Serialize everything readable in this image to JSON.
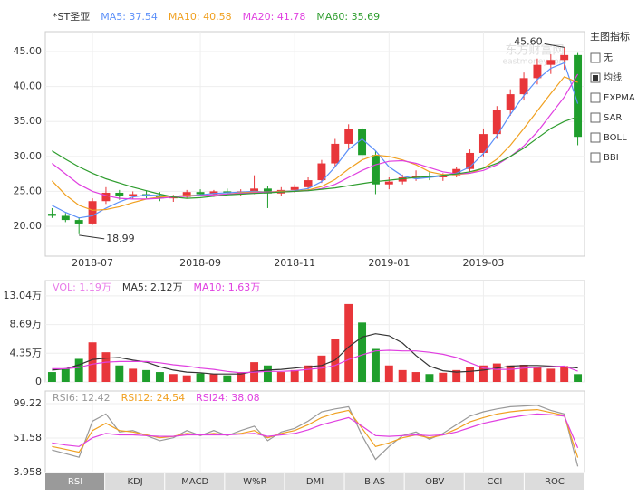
{
  "chart_data": [
    {
      "type": "candlestick",
      "title": "*ST圣亚",
      "categories": [
        null,
        null,
        null,
        "2018-07",
        null,
        null,
        null,
        null,
        null,
        null,
        null,
        "2018-09",
        null,
        null,
        null,
        null,
        null,
        null,
        "2018-11",
        null,
        null,
        null,
        null,
        null,
        null,
        "2019-01",
        null,
        null,
        null,
        null,
        null,
        null,
        "2019-03",
        null,
        null,
        null,
        null,
        null,
        null,
        null
      ],
      "open": [
        21.8,
        21.5,
        20.9,
        20.4,
        23.6,
        24.8,
        24.3,
        24.6,
        24.4,
        24.0,
        24.2,
        24.9,
        24.6,
        25.0,
        24.8,
        25.0,
        25.4,
        24.7,
        25.2,
        25.6,
        26.6,
        29.0,
        31.8,
        33.9,
        30.2,
        26.0,
        26.4,
        27.0,
        27.2,
        27.0,
        27.3,
        28.2,
        30.5,
        33.2,
        36.6,
        38.9,
        41.2,
        43.1,
        43.8,
        44.5
      ],
      "high": [
        22.6,
        21.9,
        21.3,
        24.0,
        25.6,
        25.2,
        25.0,
        25.1,
        24.9,
        24.5,
        25.2,
        25.3,
        25.2,
        25.4,
        25.3,
        27.3,
        25.8,
        25.6,
        26.0,
        27.0,
        29.5,
        32.5,
        34.6,
        34.2,
        30.8,
        27.0,
        27.4,
        28.0,
        27.8,
        27.6,
        28.5,
        31.0,
        34.0,
        37.2,
        39.6,
        42.0,
        44.0,
        44.6,
        45.6,
        44.8
      ],
      "low": [
        21.2,
        20.6,
        18.99,
        20.2,
        23.2,
        23.8,
        23.9,
        24.0,
        23.6,
        23.5,
        24.0,
        24.3,
        24.2,
        24.5,
        24.3,
        24.6,
        22.6,
        24.4,
        24.8,
        25.2,
        26.2,
        28.5,
        31.0,
        29.5,
        24.6,
        25.3,
        26.0,
        26.5,
        26.6,
        26.5,
        27.0,
        27.8,
        30.0,
        32.5,
        35.8,
        38.0,
        40.3,
        41.8,
        42.4,
        31.6
      ],
      "close": [
        21.5,
        20.9,
        20.4,
        23.6,
        24.8,
        24.3,
        24.6,
        24.4,
        24.0,
        24.2,
        24.9,
        24.6,
        25.0,
        24.8,
        25.0,
        25.4,
        24.7,
        25.2,
        25.6,
        26.6,
        29.0,
        31.8,
        33.9,
        30.2,
        26.0,
        26.4,
        27.0,
        27.2,
        27.0,
        27.3,
        28.2,
        30.5,
        33.2,
        36.6,
        38.9,
        41.2,
        43.1,
        43.8,
        44.5,
        32.8
      ],
      "up_color": "#e8363a",
      "down_color": "#1f9e2c",
      "series": [
        {
          "name": "MA5: 37.54",
          "color": "#5b8ff9",
          "values": [
            23.0,
            22.0,
            21.2,
            21.5,
            22.6,
            23.5,
            24.2,
            24.5,
            24.4,
            24.3,
            24.4,
            24.5,
            24.7,
            24.8,
            24.9,
            25.0,
            24.9,
            25.0,
            25.1,
            25.4,
            26.4,
            28.5,
            31.0,
            32.5,
            30.8,
            28.5,
            27.2,
            26.8,
            27.0,
            27.2,
            27.6,
            28.5,
            30.4,
            33.0,
            36.0,
            38.7,
            41.0,
            42.6,
            43.4,
            37.54
          ]
        },
        {
          "name": "MA10: 40.58",
          "color": "#f0a020",
          "values": [
            26.5,
            24.5,
            23.0,
            22.3,
            22.4,
            22.8,
            23.4,
            23.9,
            24.2,
            24.3,
            24.4,
            24.4,
            24.5,
            24.6,
            24.8,
            24.9,
            24.9,
            25.0,
            25.0,
            25.2,
            25.7,
            26.7,
            28.2,
            29.5,
            30.2,
            30.0,
            29.5,
            28.8,
            27.8,
            27.4,
            27.4,
            27.6,
            28.3,
            29.6,
            31.6,
            34.0,
            36.5,
            39.0,
            41.4,
            40.58
          ]
        },
        {
          "name": "MA20: 41.78",
          "color": "#e040e0",
          "values": [
            29.0,
            27.5,
            26.0,
            25.0,
            24.4,
            24.0,
            23.9,
            23.9,
            24.0,
            24.2,
            24.3,
            24.4,
            24.5,
            24.6,
            24.7,
            24.8,
            24.9,
            24.9,
            25.0,
            25.1,
            25.4,
            26.0,
            27.0,
            28.0,
            28.8,
            29.3,
            29.4,
            29.0,
            28.4,
            27.8,
            27.5,
            27.6,
            28.0,
            28.8,
            30.0,
            31.5,
            33.5,
            36.0,
            38.5,
            41.78
          ]
        },
        {
          "name": "MA60: 35.69",
          "color": "#2e9d2e",
          "values": [
            30.8,
            29.6,
            28.5,
            27.6,
            26.8,
            26.2,
            25.6,
            25.1,
            24.6,
            24.2,
            24.0,
            24.1,
            24.3,
            24.5,
            24.6,
            24.7,
            24.8,
            24.9,
            25.0,
            25.1,
            25.3,
            25.5,
            25.8,
            26.1,
            26.4,
            26.6,
            26.8,
            27.0,
            27.1,
            27.3,
            27.5,
            27.8,
            28.3,
            29.0,
            30.0,
            31.2,
            32.6,
            34.0,
            35.0,
            35.69
          ]
        }
      ],
      "annotations": [
        {
          "label": "45.60",
          "value": 45.6
        },
        {
          "label": "18.99",
          "value": 18.99
        }
      ],
      "ylim": [
        15.73,
        47.85
      ],
      "yticks": [
        {
          "value": 20,
          "label": "20.00"
        },
        {
          "value": 25,
          "label": "25.00"
        },
        {
          "value": 30,
          "label": "30.00"
        },
        {
          "value": 35,
          "label": "35.00"
        },
        {
          "value": 40,
          "label": "40.00"
        },
        {
          "value": 45,
          "label": "45.00"
        }
      ],
      "grid": true
    },
    {
      "type": "bar",
      "series": [
        {
          "name": "VOL: 1.19万",
          "type": "bar",
          "color": "#e879e8",
          "values": [
            1.5,
            2.0,
            3.5,
            6.0,
            4.5,
            2.5,
            2.0,
            1.8,
            1.5,
            1.2,
            1.0,
            1.3,
            1.2,
            1.0,
            1.5,
            3.0,
            2.5,
            1.5,
            1.8,
            2.5,
            4.0,
            6.5,
            11.8,
            9.0,
            5.0,
            2.5,
            1.8,
            1.5,
            1.2,
            1.4,
            1.8,
            2.2,
            2.5,
            2.8,
            2.5,
            2.6,
            2.2,
            2.0,
            2.4,
            1.19
          ]
        },
        {
          "name": "MA5: 2.12万",
          "type": "line",
          "color": "#333333",
          "values": [
            1.8,
            2.0,
            2.6,
            3.4,
            3.6,
            3.7,
            3.3,
            3.0,
            2.3,
            1.8,
            1.5,
            1.4,
            1.2,
            1.2,
            1.2,
            1.6,
            1.8,
            1.9,
            2.1,
            2.3,
            2.5,
            3.3,
            5.3,
            6.8,
            7.3,
            7.0,
            5.9,
            4.0,
            2.4,
            1.7,
            1.5,
            1.6,
            1.8,
            2.1,
            2.4,
            2.5,
            2.5,
            2.4,
            2.3,
            2.12
          ]
        },
        {
          "name": "MA10: 1.63万",
          "type": "line",
          "color": "#e040e0",
          "values": [
            2.0,
            2.0,
            2.2,
            2.7,
            3.0,
            3.1,
            3.1,
            3.1,
            2.9,
            2.6,
            2.4,
            2.1,
            1.9,
            1.6,
            1.4,
            1.5,
            1.6,
            1.6,
            1.7,
            1.9,
            2.1,
            2.5,
            3.4,
            4.1,
            4.7,
            4.8,
            4.7,
            4.7,
            4.5,
            4.2,
            3.7,
            2.9,
            2.1,
            1.9,
            1.9,
            2.1,
            2.2,
            2.3,
            2.4,
            1.63
          ]
        }
      ],
      "ylim": [
        0,
        15.35
      ],
      "yticks": [
        0,
        {
          "value": 4.35,
          "label": "4.35万"
        },
        {
          "value": 8.69,
          "label": "8.69万"
        },
        {
          "value": 13.04,
          "label": "13.04万"
        }
      ],
      "grid": true
    },
    {
      "type": "line",
      "series": [
        {
          "name": "RSI6: 12.42",
          "color": "#999999",
          "values": [
            35,
            30,
            25,
            75,
            85,
            60,
            62,
            55,
            48,
            52,
            62,
            55,
            62,
            55,
            62,
            68,
            48,
            60,
            65,
            75,
            88,
            92,
            95,
            55,
            22,
            40,
            55,
            60,
            50,
            58,
            70,
            82,
            88,
            92,
            95,
            96,
            97,
            90,
            85,
            12.42
          ]
        },
        {
          "name": "RSI12: 24.54",
          "color": "#f0a020",
          "values": [
            40,
            36,
            32,
            62,
            72,
            62,
            60,
            56,
            52,
            54,
            58,
            56,
            58,
            56,
            58,
            62,
            52,
            58,
            62,
            70,
            80,
            86,
            90,
            65,
            40,
            45,
            52,
            56,
            52,
            56,
            64,
            74,
            80,
            85,
            88,
            90,
            91,
            87,
            83,
            24.54
          ]
        },
        {
          "name": "RSI24: 38.08",
          "color": "#e040e0",
          "values": [
            45,
            42,
            40,
            52,
            58,
            56,
            56,
            55,
            54,
            54,
            56,
            56,
            56,
            56,
            57,
            58,
            54,
            56,
            58,
            63,
            70,
            75,
            80,
            68,
            55,
            54,
            55,
            56,
            55,
            56,
            60,
            66,
            72,
            76,
            80,
            83,
            85,
            84,
            82,
            38.08
          ]
        }
      ],
      "ylim": [
        3.958,
        116.8
      ],
      "yticks": [
        3.958,
        51.58,
        99.22
      ],
      "grid": true
    }
  ],
  "watermark": [
    "东方财富网",
    "eastmoney.com"
  ],
  "indicator_menu": {
    "title": "主图指标",
    "options": [
      "无",
      "均线",
      "EXPMA",
      "SAR",
      "BOLL",
      "BBI"
    ],
    "selected": 1
  },
  "tabs": {
    "items": [
      "RSI",
      "KDJ",
      "MACD",
      "W%R",
      "DMI",
      "BIAS",
      "OBV",
      "CCI",
      "ROC"
    ],
    "active": 0
  }
}
